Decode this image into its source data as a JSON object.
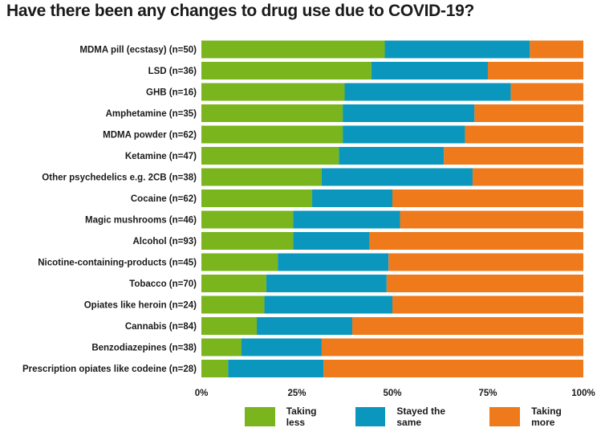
{
  "chart_data": {
    "type": "bar",
    "orientation": "horizontal",
    "stacked": "percent",
    "title": "Have there been any changes to drug use due to COVID-19?",
    "categories": [
      "MDMA pill (ecstasy) (n=50)",
      "LSD (n=36)",
      "GHB (n=16)",
      "Amphetamine (n=35)",
      "MDMA powder (n=62)",
      "Ketamine (n=47)",
      "Other psychedelics e.g. 2CB (n=38)",
      "Cocaine (n=62)",
      "Magic mushrooms (n=46)",
      "Alcohol (n=93)",
      "Nicotine-containing-products (n=45)",
      "Tobacco (n=70)",
      "Opiates like heroin (n=24)",
      "Cannabis (n=84)",
      "Benzodiazepines (n=38)",
      "Prescription opiates like codeine (n=28)"
    ],
    "series": [
      {
        "name": "Taking less",
        "color": "#7ab51d",
        "values": [
          48,
          44.5,
          37.5,
          37,
          37,
          36,
          31.5,
          29,
          24,
          24,
          20,
          17,
          16.5,
          14.5,
          10.5,
          7
        ]
      },
      {
        "name": "Stayed the same",
        "color": "#0b97bd",
        "values": [
          38,
          30.5,
          43.5,
          34.5,
          32,
          27.5,
          39.5,
          21,
          28,
          20,
          29,
          31.5,
          33.5,
          25,
          21,
          25
        ]
      },
      {
        "name": "Taking more",
        "color": "#ee7a1b",
        "values": [
          14,
          25,
          19,
          28.5,
          31,
          36.5,
          29,
          50,
          48,
          56,
          51,
          51.5,
          50,
          60.5,
          68.5,
          68
        ]
      }
    ],
    "xlim": [
      0,
      100
    ],
    "xticks": [
      "0%",
      "25%",
      "50%",
      "75%",
      "100%"
    ],
    "grid": false,
    "legend_position": "bottom"
  }
}
